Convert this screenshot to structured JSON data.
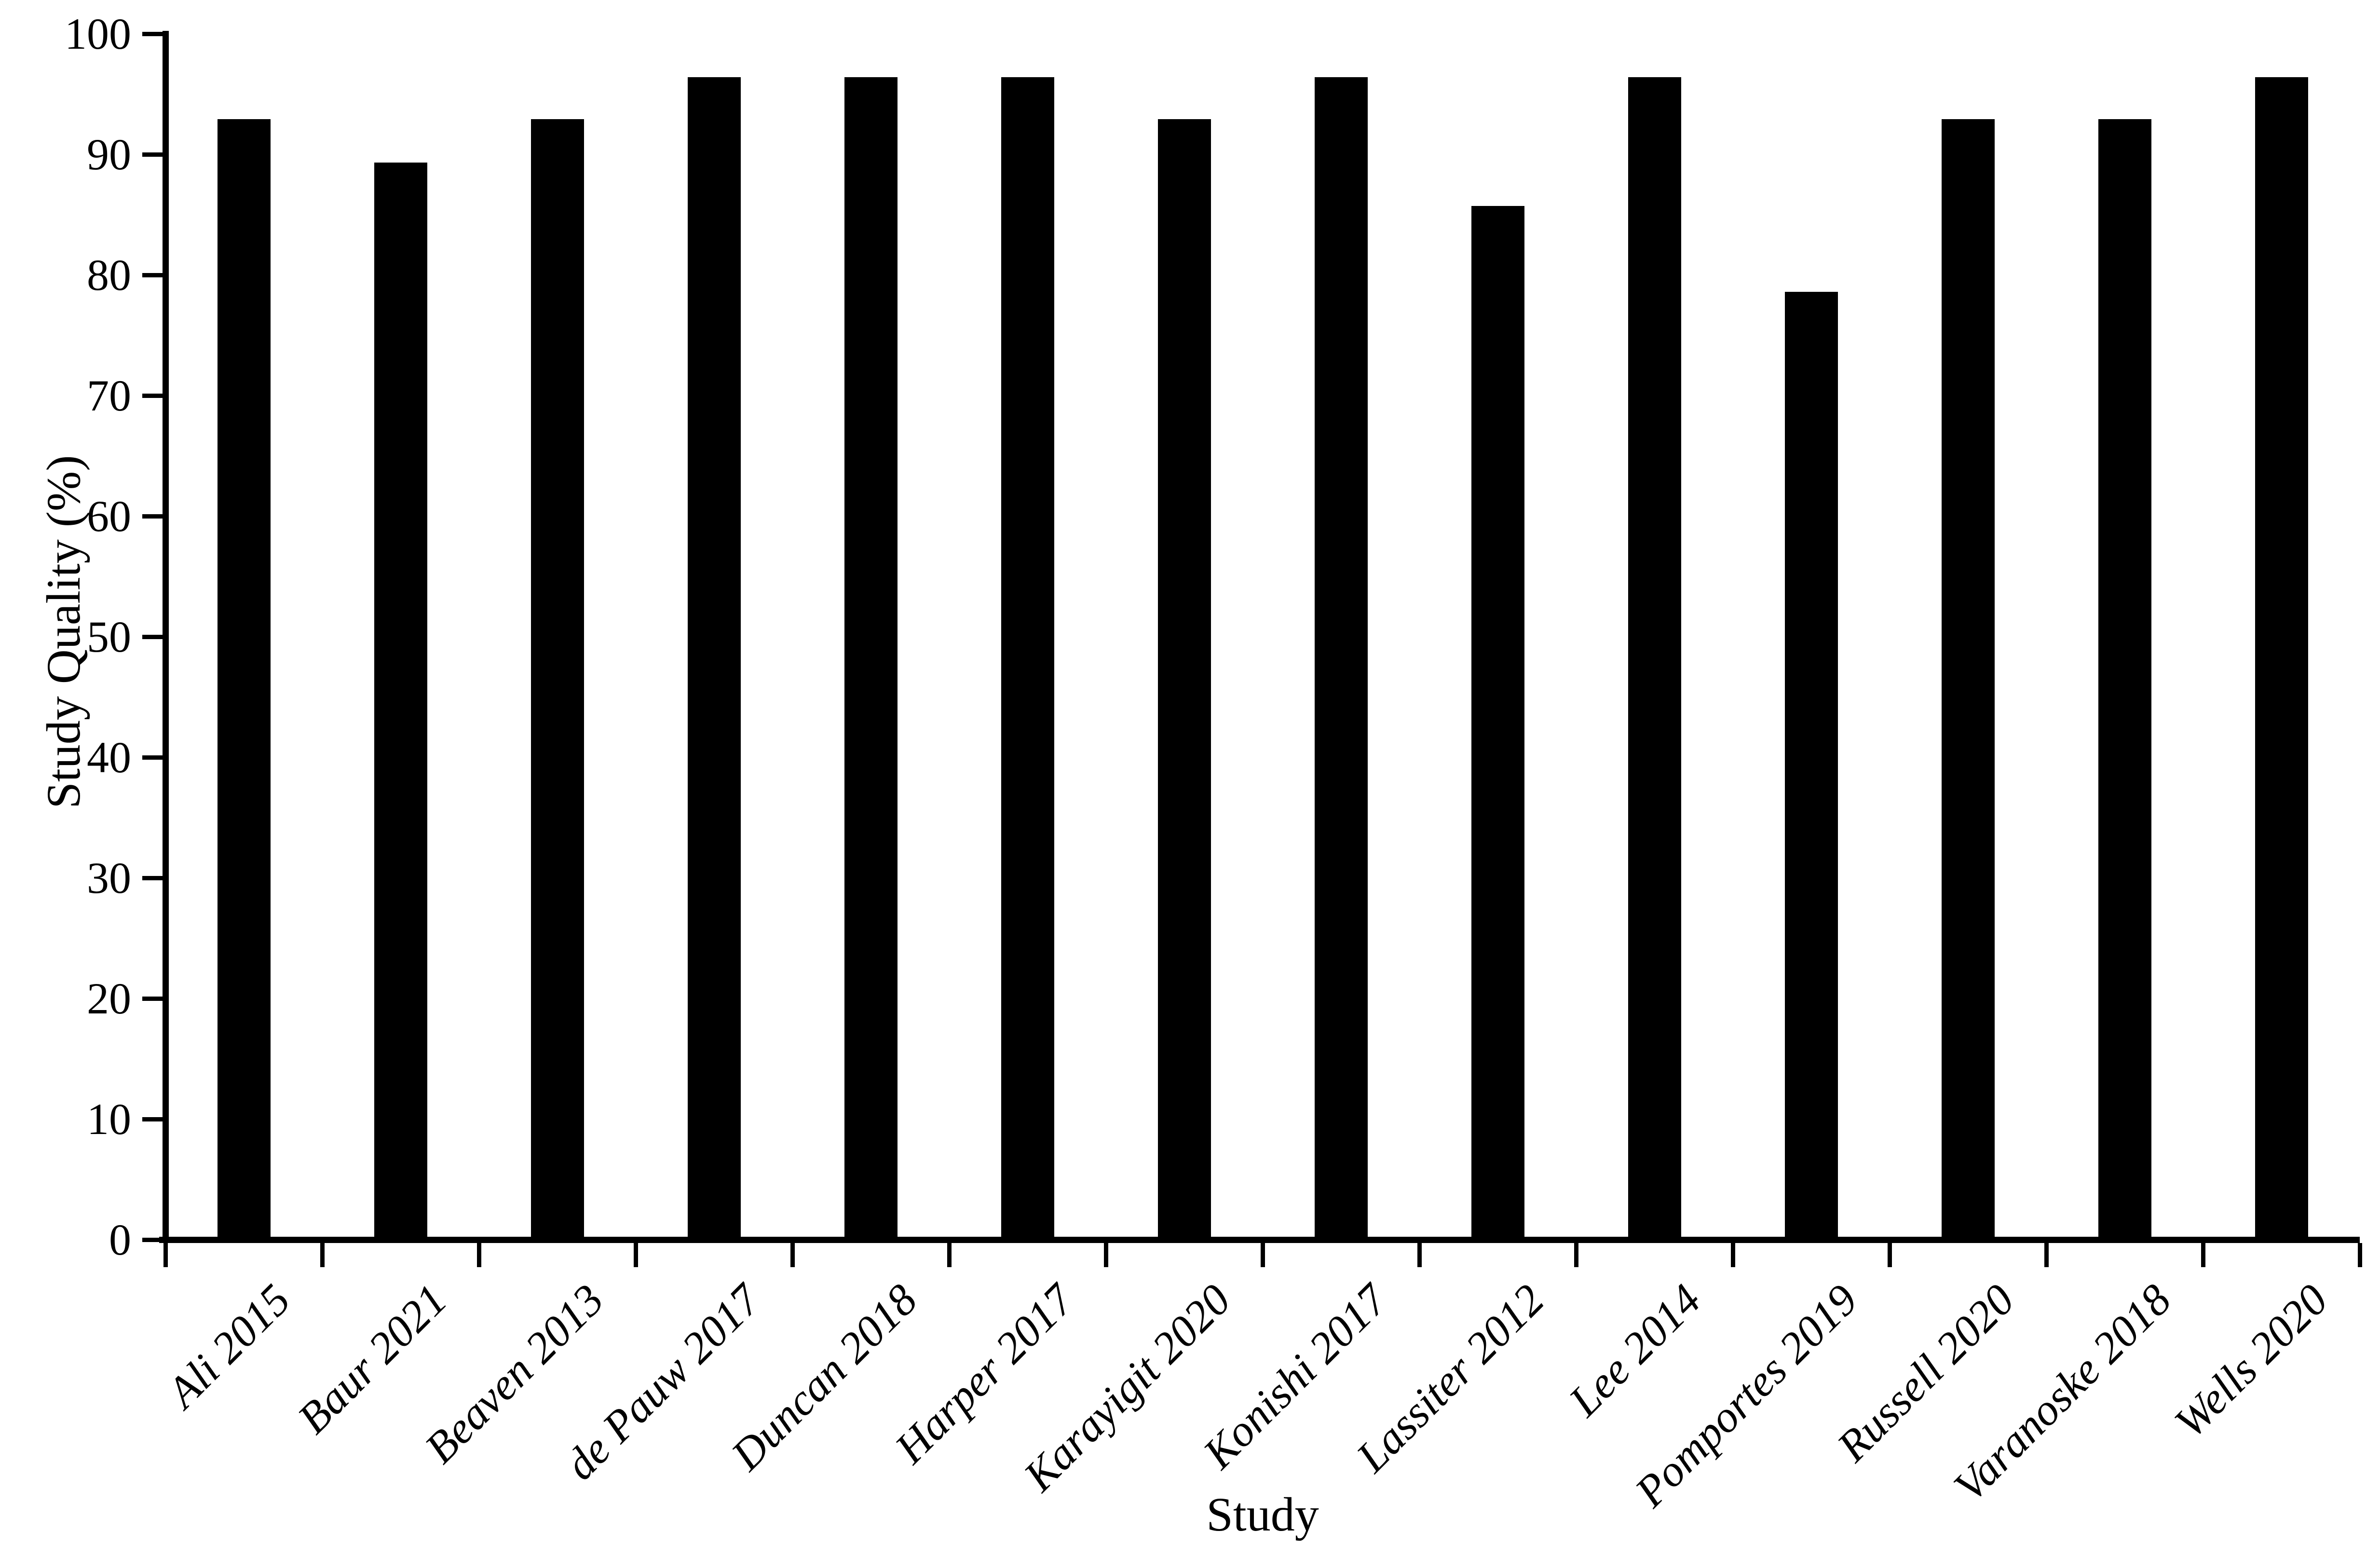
{
  "page": {
    "background": "#ffffff",
    "text_color": "#000000"
  },
  "chart_data": {
    "type": "bar",
    "title": "",
    "xlabel": "Study",
    "ylabel": "Study Quality (%)",
    "categories": [
      "Ali 2015",
      "Baur 2021",
      "Beaven 2013",
      "de Pauw 2017",
      "Duncan 2018",
      "Harper 2017",
      "Karayigit 2020",
      "Konishi 2017",
      "Lassiter 2012",
      "Lee 2014",
      "Pomportes 2019",
      "Russell 2020",
      "Varanoske 2018",
      "Wells 2020"
    ],
    "values": [
      92.9,
      89.3,
      92.9,
      96.4,
      96.4,
      96.4,
      92.9,
      96.4,
      85.7,
      96.4,
      78.6,
      92.9,
      92.9,
      96.4
    ],
    "ylim": [
      0,
      100
    ],
    "ytick_interval": 10,
    "ytick_labels": [
      "0",
      "10",
      "20",
      "30",
      "40",
      "50",
      "60",
      "70",
      "80",
      "90",
      "100"
    ],
    "grid": false,
    "legend_position": "none",
    "bar_color": "#000000",
    "axis_color": "#000000",
    "background_color": "#ffffff"
  }
}
